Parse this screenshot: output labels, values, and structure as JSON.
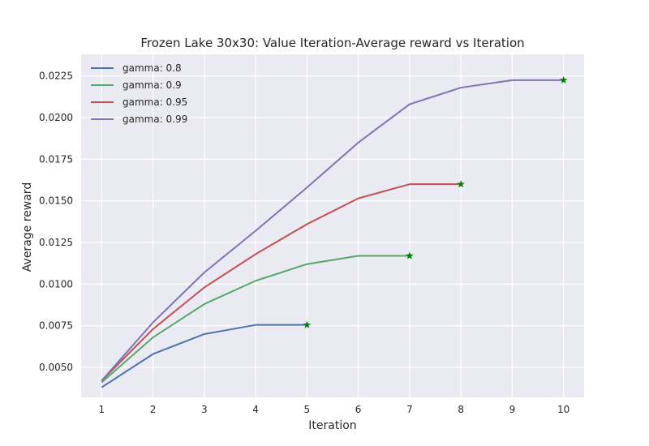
{
  "chart_data": {
    "type": "line",
    "title": "Frozen Lake 30x30: Value Iteration-Average reward vs Iteration",
    "xlabel": "Iteration",
    "ylabel": "Average reward",
    "xlim": [
      0.6,
      10.4
    ],
    "ylim": [
      0.0032,
      0.0238
    ],
    "xticks": [
      1,
      2,
      3,
      4,
      5,
      6,
      7,
      8,
      9,
      10
    ],
    "yticks": [
      0.005,
      0.0075,
      0.01,
      0.0125,
      0.015,
      0.0175,
      0.02,
      0.0225
    ],
    "ytick_labels": [
      "0.0050",
      "0.0075",
      "0.0100",
      "0.0125",
      "0.0150",
      "0.0175",
      "0.0200",
      "0.0225"
    ],
    "grid": true,
    "legend_position": "top-left",
    "background": "#eaeaf2",
    "marker_color": "#008000",
    "series": [
      {
        "name": "gamma: 0.8",
        "color": "#4c72b0",
        "x": [
          1,
          2,
          3,
          4,
          5
        ],
        "y": [
          0.0038,
          0.0058,
          0.007,
          0.00755,
          0.00755
        ]
      },
      {
        "name": "gamma: 0.9",
        "color": "#55a868",
        "x": [
          1,
          2,
          3,
          4,
          5,
          6,
          7
        ],
        "y": [
          0.0041,
          0.0068,
          0.0088,
          0.0102,
          0.0112,
          0.0117,
          0.0117
        ]
      },
      {
        "name": "gamma: 0.95",
        "color": "#c44e52",
        "x": [
          1,
          2,
          3,
          4,
          5,
          6,
          7,
          8
        ],
        "y": [
          0.0042,
          0.0073,
          0.0098,
          0.0118,
          0.0136,
          0.01515,
          0.016,
          0.016
        ]
      },
      {
        "name": "gamma: 0.99",
        "color": "#8172b2",
        "x": [
          1,
          2,
          3,
          4,
          5,
          6,
          7,
          8,
          9,
          10
        ],
        "y": [
          0.0042,
          0.0077,
          0.0107,
          0.0132,
          0.0158,
          0.0185,
          0.0208,
          0.0218,
          0.02225,
          0.02225
        ]
      }
    ]
  }
}
